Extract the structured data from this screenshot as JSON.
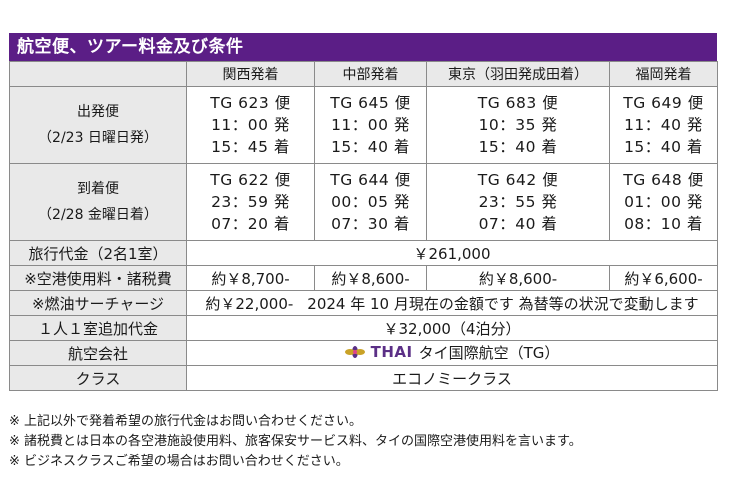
{
  "title": "航空便、ツアー料金及び条件",
  "columns": [
    "関西発着",
    "中部発着",
    "東京（羽田発成田着）",
    "福岡発着"
  ],
  "outbound": {
    "label": "出発便",
    "sub": "（2/23 日曜日発）",
    "flights": [
      {
        "flight": "TG 623 便",
        "dep": "11：00 発",
        "arr": "15：45 着"
      },
      {
        "flight": "TG 645 便",
        "dep": "11：00 発",
        "arr": "15：40 着"
      },
      {
        "flight": "TG 683 便",
        "dep": "10：35 発",
        "arr": "15：40 着"
      },
      {
        "flight": "TG 649 便",
        "dep": "11：40 発",
        "arr": "15：40 着"
      }
    ]
  },
  "inbound": {
    "label": "到着便",
    "sub": "（2/28 金曜日着）",
    "flights": [
      {
        "flight": "TG 622 便",
        "dep": "23：59 発",
        "arr": "07：20 着"
      },
      {
        "flight": "TG 644 便",
        "dep": "00：05 発",
        "arr": "07：30 着"
      },
      {
        "flight": "TG 642 便",
        "dep": "23：55 発",
        "arr": "07：40 着"
      },
      {
        "flight": "TG 648 便",
        "dep": "01：00 発",
        "arr": "08：10 着"
      }
    ]
  },
  "price": {
    "label": "旅行代金（2名1室）",
    "value": "￥261,000"
  },
  "airport_fees": {
    "label": "※空港使用料・諸税費",
    "values": [
      "約￥8,700-",
      "約￥8,600-",
      "約￥8,600-",
      "約￥6,600-"
    ]
  },
  "fuel": {
    "label": "※燃油サーチャージ",
    "amount": "約￥22,000-",
    "note": "2024 年 10 月現在の金額です 為替等の状況で変動します"
  },
  "single": {
    "label": "１人１室追加代金",
    "value": "￥32,000（4泊分）"
  },
  "airline": {
    "label": "航空会社",
    "logo_text": "THAI",
    "name": "タイ国際航空（TG）",
    "logo_color": "#5b2f86",
    "logo_accent": "#c9a227"
  },
  "cabin": {
    "label": "クラス",
    "value": "エコノミークラス"
  },
  "notes": [
    "※ 上記以外で発着希望の旅行代金はお問い合わせください。",
    "※ 諸税費とは日本の各空港施設使用料、旅客保安サービス料、タイの国際空港使用料を言います。",
    "※ ビジネスクラスご希望の場合はお問い合わせください。"
  ]
}
